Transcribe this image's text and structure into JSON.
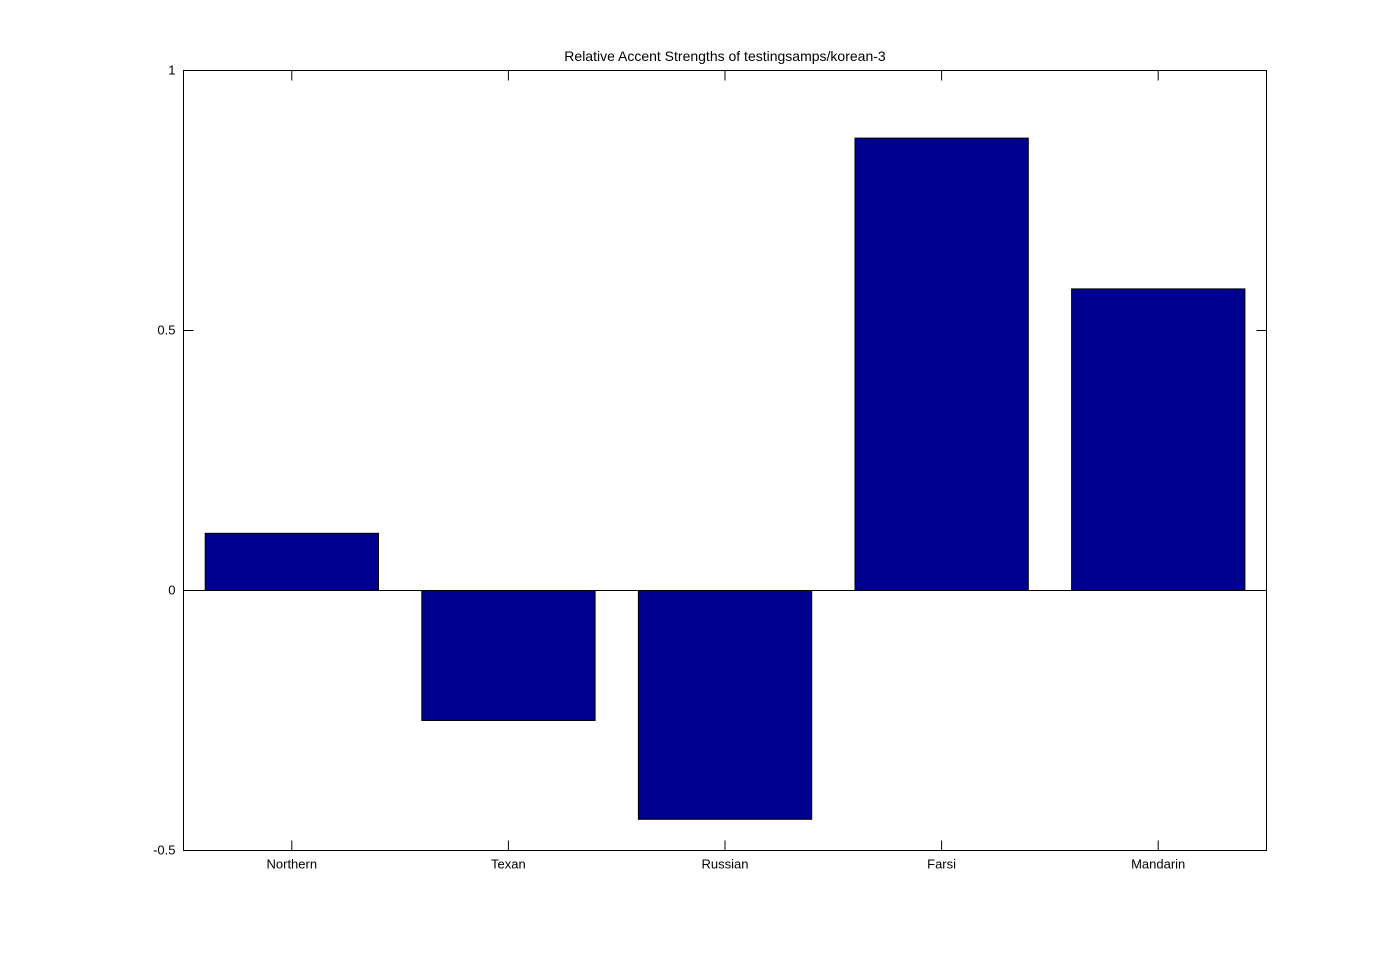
{
  "figure": {
    "background_color": "#FFFFFF",
    "axis_color": "#000000"
  },
  "chart_data": {
    "type": "bar",
    "title": "Relative Accent Strengths of testingsamps/korean-3",
    "categories": [
      "Northern",
      "Texan",
      "Russian",
      "Farsi",
      "Mandarin"
    ],
    "values": [
      0.11,
      -0.25,
      -0.44,
      0.87,
      0.58
    ],
    "xlabel": "",
    "ylabel": "",
    "ylim": [
      -0.5,
      1
    ],
    "yticks": [
      1,
      0.5,
      0,
      -0.5
    ],
    "ytick_labels": [
      "1",
      "0.5",
      "0",
      "-0.5"
    ],
    "bar_color": "#00008F",
    "bar_edge_color": "#000000",
    "baseline_value": 0,
    "grid": false,
    "legend_position": "none"
  }
}
